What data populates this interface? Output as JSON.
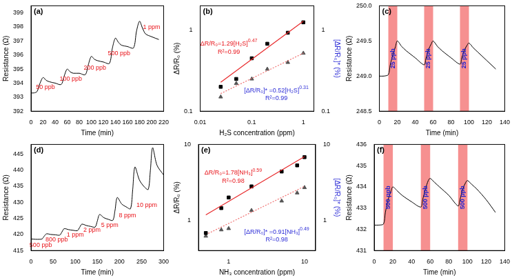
{
  "chart_data": [
    {
      "type": "line",
      "title": "(a)",
      "x_label": "Time (min)",
      "y_label": "Resistance (Ω)",
      "grid": false,
      "x": [
        0,
        5,
        10,
        15,
        20,
        25,
        30,
        40,
        50,
        55,
        60,
        65,
        70,
        80,
        90,
        95,
        100,
        105,
        110,
        120,
        130,
        135,
        140,
        145,
        150,
        160,
        170,
        175,
        180,
        185,
        190,
        200,
        212
      ],
      "series": [
        {
          "color": "#000000",
          "values": [
            393.3,
            393.3,
            393.4,
            394.0,
            394.4,
            394.2,
            394.1,
            394.0,
            393.9,
            394.5,
            395.0,
            394.8,
            394.7,
            394.7,
            394.6,
            395.3,
            395.9,
            395.7,
            395.6,
            395.5,
            395.4,
            396.5,
            397.2,
            396.9,
            396.7,
            396.6,
            396.5,
            397.7,
            398.4,
            397.9,
            397.5,
            397.3,
            397.1
          ]
        }
      ],
      "xlim": [
        0,
        220
      ],
      "xticks": [
        0,
        20,
        40,
        60,
        80,
        100,
        120,
        140,
        160,
        180,
        200,
        220
      ],
      "ylim": [
        392,
        399.5
      ],
      "yticks": [
        392,
        393,
        394,
        395,
        396,
        397,
        398,
        399
      ],
      "annotations": [
        {
          "text": "50 ppb",
          "x": 24,
          "y": 393.7,
          "color": "#e8141a"
        },
        {
          "text": "100 ppb",
          "x": 66,
          "y": 394.3,
          "color": "#e8141a"
        },
        {
          "text": "200 ppb",
          "x": 106,
          "y": 395.1,
          "color": "#e8141a"
        },
        {
          "text": "500 ppb",
          "x": 146,
          "y": 396.1,
          "color": "#e8141a"
        },
        {
          "text": "1 ppm",
          "x": 200,
          "y": 397.95,
          "color": "#e8141a"
        }
      ]
    },
    {
      "type": "scatter",
      "title": "(b)",
      "x_label": "H₂S concentration (ppm)",
      "y_label": "ΔR/R₀ (%)",
      "y2_label": "[ΔR/R₀]* (%)",
      "log": true,
      "grid": false,
      "x": [
        0.025,
        0.05,
        0.1,
        0.2,
        0.5,
        1
      ],
      "series": [
        {
          "color": "#000000",
          "marker": "square",
          "values": [
            0.2,
            0.25,
            0.45,
            0.68,
            0.93,
            1.25
          ],
          "fit": {
            "x": [
              0.025,
              1
            ],
            "values": [
              0.228,
              1.29
            ],
            "color": "#e8282a",
            "line_style": "solid"
          }
        },
        {
          "color": "#555555",
          "marker": "triangle",
          "axis": "y2",
          "values": [
            0.15,
            0.22,
            0.25,
            0.33,
            0.4,
            0.52
          ],
          "fit": {
            "x": [
              0.025,
              1
            ],
            "values": [
              0.165,
              0.52
            ],
            "color": "#f07070",
            "line_style": "dotted"
          }
        }
      ],
      "xlim": [
        0.01,
        1.6
      ],
      "xticks": [
        0.01,
        0.1,
        1
      ],
      "ylim": [
        0.1,
        2
      ],
      "yticks": [
        0.1,
        1
      ],
      "y2lim": [
        0.1,
        2
      ],
      "y2ticks": [
        0.1,
        1
      ],
      "annotations": [
        {
          "text": "ΔR/R₀=1.29[H₂S]",
          "sup": "0.47",
          "x": 0.036,
          "y": 0.68,
          "color": "#e8141a"
        },
        {
          "text": "R²=0.99",
          "x": 0.036,
          "y": 0.54,
          "color": "#e8141a"
        },
        {
          "text": "[ΔR/R₀]* =0.52[H₂S]",
          "sup": "0.31",
          "x": 0.3,
          "y": 0.18,
          "color": "#2b2bd6"
        },
        {
          "text": "R²=0.99",
          "x": 0.3,
          "y": 0.143,
          "color": "#2b2bd6"
        }
      ]
    },
    {
      "type": "line",
      "title": "(c)",
      "x_label": "Time (min)",
      "y_label": "Resistance (Ω)",
      "grid": false,
      "x": [
        0,
        5,
        10,
        12,
        15,
        18,
        20,
        25,
        30,
        40,
        50,
        52,
        55,
        58,
        60,
        65,
        70,
        80,
        90,
        92,
        95,
        98,
        100,
        105,
        110,
        120,
        130
      ],
      "series": [
        {
          "color": "#000000",
          "values": [
            249.0,
            249.0,
            249.02,
            249.15,
            249.3,
            249.42,
            249.5,
            249.42,
            249.36,
            249.26,
            249.16,
            249.25,
            249.38,
            249.46,
            249.5,
            249.42,
            249.36,
            249.26,
            249.17,
            249.26,
            249.37,
            249.44,
            249.47,
            249.4,
            249.34,
            249.22,
            249.1
          ]
        }
      ],
      "xlim": [
        0,
        140
      ],
      "xticks": [
        0,
        20,
        40,
        60,
        80,
        100,
        120,
        140
      ],
      "ylim": [
        248.5,
        250
      ],
      "yticks": [
        248.5,
        {
          "value": 249,
          "label": "249.0"
        },
        249.5,
        {
          "value": 250,
          "label": "250.0"
        }
      ],
      "highlights": [
        {
          "x0": 10,
          "x1": 20,
          "label": "25 ppb",
          "color": "#f47c7c"
        },
        {
          "x0": 50,
          "x1": 60,
          "label": "25 ppb",
          "color": "#f47c7c"
        },
        {
          "x0": 90,
          "x1": 100,
          "label": "25 ppb",
          "color": "#f47c7c"
        }
      ]
    },
    {
      "type": "line",
      "title": "(d)",
      "x_label": "Time (min)",
      "y_label": "Resistance (Ω)",
      "grid": false,
      "x": [
        0,
        10,
        20,
        25,
        30,
        35,
        45,
        55,
        65,
        70,
        75,
        85,
        95,
        105,
        110,
        115,
        125,
        135,
        145,
        150,
        155,
        165,
        175,
        185,
        190,
        195,
        205,
        215,
        225,
        230,
        235,
        245,
        255,
        265,
        270,
        275,
        285,
        300
      ],
      "series": [
        {
          "color": "#000000",
          "values": [
            418.6,
            418.5,
            418.5,
            418.6,
            419.5,
            420.2,
            420.0,
            419.9,
            419.8,
            420.8,
            421.8,
            421.5,
            421.3,
            421.2,
            422.2,
            423.2,
            422.8,
            422.5,
            422.3,
            424.2,
            426.2,
            425.2,
            424.7,
            424.4,
            427.5,
            431.5,
            429.5,
            428.6,
            428.0,
            434.0,
            441.0,
            437.0,
            435.0,
            434.0,
            440.0,
            447.0,
            441.5,
            438.5
          ]
        }
      ],
      "xlim": [
        0,
        300
      ],
      "xticks": [
        0,
        50,
        100,
        150,
        200,
        250,
        300
      ],
      "ylim": [
        415,
        448
      ],
      "yticks": [
        415,
        420,
        425,
        430,
        435,
        440,
        445
      ],
      "annotations": [
        {
          "text": "500 ppb",
          "x": 22,
          "y": 416.6,
          "color": "#e8141a"
        },
        {
          "text": "800 ppb",
          "x": 58,
          "y": 418.3,
          "color": "#e8141a"
        },
        {
          "text": "1 ppm",
          "x": 100,
          "y": 419.8,
          "color": "#e8141a"
        },
        {
          "text": "2 ppm",
          "x": 138,
          "y": 421.3,
          "color": "#e8141a"
        },
        {
          "text": "5 ppm",
          "x": 178,
          "y": 422.8,
          "color": "#e8141a"
        },
        {
          "text": "8 ppm",
          "x": 218,
          "y": 425.8,
          "color": "#e8141a"
        },
        {
          "text": "10 ppm",
          "x": 262,
          "y": 429.0,
          "color": "#e8141a"
        }
      ]
    },
    {
      "type": "scatter",
      "title": "(e)",
      "x_label": "NH₃ concentration (ppm)",
      "y_label": "ΔR/R₀ (%)",
      "y2_label": "[ΔR/R₀]* (%)",
      "log": true,
      "grid": false,
      "x": [
        0.5,
        0.8,
        1,
        2,
        5,
        8,
        10
      ],
      "series": [
        {
          "color": "#000000",
          "marker": "square",
          "values": [
            0.68,
            1.45,
            2.0,
            2.8,
            4.4,
            5.3,
            6.8
          ],
          "fit": {
            "x": [
              0.5,
              10
            ],
            "values": [
              1.18,
              6.93
            ],
            "color": "#e8282a",
            "line_style": "solid"
          }
        },
        {
          "color": "#555555",
          "marker": "triangle",
          "axis": "y2",
          "values": [
            0.62,
            0.75,
            0.78,
            1.35,
            1.8,
            2.3,
            2.7
          ],
          "fit": {
            "x": [
              0.5,
              10
            ],
            "values": [
              0.648,
              2.81
            ],
            "color": "#f07070",
            "line_style": "dotted"
          }
        }
      ],
      "xlim": [
        0.4,
        14
      ],
      "xticks": [
        1,
        10
      ],
      "ylim": [
        0.4,
        10
      ],
      "yticks": [
        1,
        10
      ],
      "y2lim": [
        0.4,
        10
      ],
      "y2ticks": [
        1,
        10
      ],
      "annotations": [
        {
          "text": "ΔR/R₀=1.78[NH₃]",
          "sup": "0.59",
          "x": 1.15,
          "y": 4.2,
          "color": "#e8141a"
        },
        {
          "text": "R²=0.98",
          "x": 1.15,
          "y": 3.3,
          "color": "#e8141a"
        },
        {
          "text": "[ΔR/R₀]* =0.91[NH₃]",
          "sup": "0.49",
          "x": 4.3,
          "y": 0.7,
          "color": "#2b2bd6"
        },
        {
          "text": "R²=0.98",
          "x": 4.3,
          "y": 0.55,
          "color": "#2b2bd6"
        }
      ]
    },
    {
      "type": "line",
      "title": "(f)",
      "x_label": "Time (min)",
      "y_label": "Resistance (Ω)",
      "grid": false,
      "x": [
        0,
        5,
        10,
        12,
        15,
        18,
        20,
        25,
        30,
        40,
        50,
        52,
        55,
        58,
        60,
        65,
        70,
        80,
        90,
        92,
        95,
        98,
        100,
        105,
        110,
        120,
        130
      ],
      "series": [
        {
          "color": "#000000",
          "values": [
            432.2,
            432.2,
            432.25,
            432.8,
            433.4,
            433.8,
            434.0,
            433.8,
            433.6,
            433.3,
            433.05,
            433.4,
            433.9,
            434.3,
            434.4,
            434.2,
            434.0,
            433.6,
            433.1,
            433.4,
            433.9,
            434.2,
            434.3,
            434.1,
            433.9,
            433.4,
            432.8
          ]
        }
      ],
      "xlim": [
        0,
        140
      ],
      "xticks": [
        0,
        20,
        40,
        60,
        80,
        100,
        120,
        140
      ],
      "ylim": [
        431,
        436
      ],
      "yticks": [
        431,
        432,
        433,
        434,
        435,
        436
      ],
      "highlights": [
        {
          "x0": 10,
          "x1": 20,
          "label": "500 ppb",
          "color": "#f47c7c"
        },
        {
          "x0": 50,
          "x1": 60,
          "label": "500 ppb",
          "color": "#f47c7c"
        },
        {
          "x0": 90,
          "x1": 100,
          "label": "500 ppb",
          "color": "#f47c7c"
        }
      ]
    }
  ]
}
